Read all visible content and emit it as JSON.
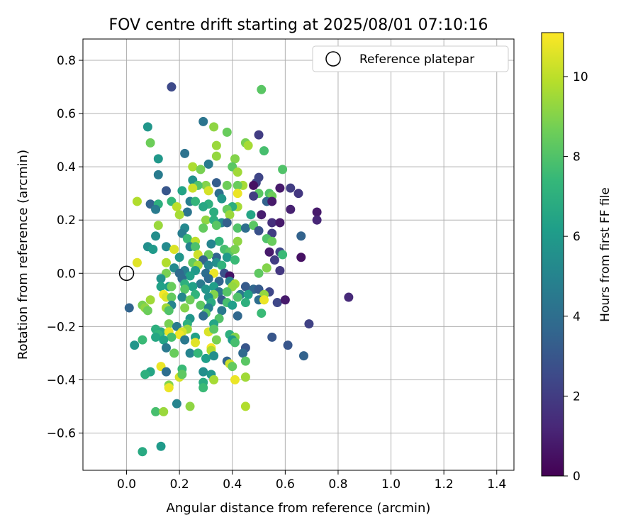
{
  "chart_data": {
    "type": "scatter",
    "title": "FOV centre drift starting at 2025/08/01 07:10:16",
    "xlabel": "Angular distance from reference (arcmin)",
    "ylabel": "Rotation from reference (arcmin)",
    "xlim": [
      -0.165,
      1.465
    ],
    "ylim": [
      -0.74,
      0.88
    ],
    "xticks": [
      0.0,
      0.2,
      0.4,
      0.6,
      0.8,
      1.0,
      1.2,
      1.4
    ],
    "xtick_labels": [
      "0.0",
      "0.2",
      "0.4",
      "0.6",
      "0.8",
      "1.0",
      "1.2",
      "1.4"
    ],
    "yticks": [
      -0.6,
      -0.4,
      -0.2,
      0.0,
      0.2,
      0.4,
      0.6,
      0.8
    ],
    "ytick_labels": [
      "−0.6",
      "−0.4",
      "−0.2",
      "0.0",
      "0.2",
      "0.4",
      "0.6",
      "0.8"
    ],
    "grid": true,
    "legend": {
      "position": "top-right",
      "entries": [
        "Reference platepar"
      ]
    },
    "reference_point": {
      "x": 0.0,
      "y": 0.0
    },
    "colorbar": {
      "label": "Hours from first FF file",
      "min": 0,
      "max": 11.1,
      "ticks": [
        0,
        2,
        4,
        6,
        8,
        10
      ],
      "tick_labels": [
        "0",
        "2",
        "4",
        "6",
        "8",
        "10"
      ],
      "colormap": "viridis",
      "colormap_stops": [
        "#440154",
        "#482878",
        "#3e4989",
        "#31688e",
        "#26828e",
        "#1f9e89",
        "#35b779",
        "#6ece58",
        "#b5de2b",
        "#fde725"
      ]
    },
    "points": [
      [
        0.17,
        0.7,
        2.5
      ],
      [
        0.51,
        0.69,
        8.2
      ],
      [
        0.29,
        0.57,
        4.3
      ],
      [
        0.08,
        0.55,
        5.8
      ],
      [
        0.33,
        0.55,
        9.2
      ],
      [
        0.38,
        0.53,
        8.5
      ],
      [
        0.5,
        0.52,
        2.0
      ],
      [
        0.09,
        0.49,
        8.6
      ],
      [
        0.45,
        0.49,
        8.8
      ],
      [
        0.46,
        0.48,
        9.6
      ],
      [
        0.34,
        0.48,
        9.4
      ],
      [
        0.52,
        0.46,
        7.8
      ],
      [
        0.22,
        0.45,
        4.2
      ],
      [
        0.34,
        0.44,
        9.3
      ],
      [
        0.12,
        0.43,
        5.9
      ],
      [
        0.41,
        0.43,
        9.0
      ],
      [
        0.31,
        0.41,
        4.6
      ],
      [
        0.4,
        0.4,
        8.2
      ],
      [
        0.25,
        0.4,
        9.7
      ],
      [
        0.28,
        0.39,
        8.8
      ],
      [
        0.59,
        0.39,
        8.0
      ],
      [
        0.42,
        0.38,
        9.5
      ],
      [
        0.12,
        0.37,
        4.6
      ],
      [
        0.5,
        0.36,
        2.3
      ],
      [
        0.25,
        0.35,
        5.6
      ],
      [
        0.34,
        0.34,
        3.3
      ],
      [
        0.49,
        0.34,
        2.3
      ],
      [
        0.48,
        0.33,
        0.5
      ],
      [
        0.44,
        0.33,
        9.6
      ],
      [
        0.38,
        0.33,
        8.6
      ],
      [
        0.42,
        0.33,
        8.5
      ],
      [
        0.3,
        0.33,
        9.0
      ],
      [
        0.27,
        0.33,
        8.0
      ],
      [
        0.25,
        0.32,
        10.2
      ],
      [
        0.15,
        0.31,
        3.0
      ],
      [
        0.21,
        0.31,
        6.4
      ],
      [
        0.58,
        0.32,
        0.8
      ],
      [
        0.54,
        0.3,
        8.0
      ],
      [
        0.65,
        0.3,
        1.8
      ],
      [
        0.62,
        0.32,
        2.0
      ],
      [
        0.35,
        0.3,
        4.0
      ],
      [
        0.31,
        0.31,
        10.4
      ],
      [
        0.5,
        0.3,
        8.2
      ],
      [
        0.42,
        0.3,
        10.8
      ],
      [
        0.48,
        0.29,
        2.0
      ],
      [
        0.55,
        0.29,
        8.6
      ],
      [
        0.36,
        0.28,
        5.8
      ],
      [
        0.53,
        0.27,
        3.5
      ],
      [
        0.55,
        0.27,
        0.8
      ],
      [
        0.04,
        0.27,
        9.8
      ],
      [
        0.17,
        0.27,
        7.4
      ],
      [
        0.09,
        0.26,
        3.5
      ],
      [
        0.12,
        0.26,
        7.0
      ],
      [
        0.24,
        0.27,
        4.8
      ],
      [
        0.26,
        0.27,
        7.3
      ],
      [
        0.31,
        0.26,
        7.0
      ],
      [
        0.29,
        0.25,
        6.6
      ],
      [
        0.19,
        0.25,
        10.0
      ],
      [
        0.11,
        0.24,
        4.6
      ],
      [
        0.62,
        0.24,
        1.0
      ],
      [
        0.42,
        0.25,
        9.6
      ],
      [
        0.4,
        0.25,
        6.9
      ],
      [
        0.51,
        0.22,
        0.9
      ],
      [
        0.38,
        0.24,
        8.4
      ],
      [
        0.47,
        0.22,
        6.5
      ],
      [
        0.33,
        0.23,
        6.9
      ],
      [
        0.39,
        0.22,
        9.4
      ],
      [
        0.23,
        0.23,
        4.3
      ],
      [
        0.2,
        0.22,
        9.6
      ],
      [
        0.72,
        0.23,
        0.8
      ],
      [
        0.72,
        0.2,
        1.2
      ],
      [
        0.3,
        0.2,
        9.2
      ],
      [
        0.33,
        0.2,
        7.0
      ],
      [
        0.36,
        0.19,
        5.3
      ],
      [
        0.38,
        0.19,
        3.4
      ],
      [
        0.34,
        0.18,
        8.2
      ],
      [
        0.55,
        0.19,
        1.5
      ],
      [
        0.58,
        0.19,
        0.8
      ],
      [
        0.12,
        0.18,
        9.4
      ],
      [
        0.22,
        0.17,
        5.2
      ],
      [
        0.29,
        0.17,
        8.4
      ],
      [
        0.42,
        0.17,
        8.0
      ],
      [
        0.45,
        0.17,
        4.0
      ],
      [
        0.48,
        0.18,
        8.2
      ],
      [
        0.5,
        0.16,
        2.8
      ],
      [
        0.55,
        0.15,
        2.0
      ],
      [
        0.53,
        0.13,
        8.0
      ],
      [
        0.55,
        0.12,
        8.5
      ],
      [
        0.21,
        0.15,
        4.7
      ],
      [
        0.66,
        0.14,
        3.5
      ],
      [
        0.23,
        0.13,
        7.5
      ],
      [
        0.11,
        0.14,
        5.4
      ],
      [
        0.26,
        0.12,
        10.0
      ],
      [
        0.35,
        0.12,
        7.3
      ],
      [
        0.32,
        0.11,
        5.0
      ],
      [
        0.42,
        0.12,
        9.2
      ],
      [
        0.37,
        0.09,
        7.8
      ],
      [
        0.24,
        0.1,
        4.9
      ],
      [
        0.26,
        0.1,
        7.9
      ],
      [
        0.08,
        0.1,
        5.5
      ],
      [
        0.15,
        0.1,
        5.3
      ],
      [
        0.1,
        0.09,
        6.0
      ],
      [
        0.18,
        0.09,
        10.5
      ],
      [
        0.54,
        0.08,
        0.8
      ],
      [
        0.58,
        0.08,
        2.3
      ],
      [
        0.39,
        0.08,
        8.2
      ],
      [
        0.41,
        0.09,
        8.8
      ],
      [
        0.34,
        0.06,
        3.6
      ],
      [
        0.27,
        0.07,
        10.3
      ],
      [
        0.31,
        0.07,
        8.5
      ],
      [
        0.59,
        0.07,
        7.5
      ],
      [
        0.2,
        0.06,
        5.8
      ],
      [
        0.38,
        0.06,
        6.0
      ],
      [
        0.56,
        0.05,
        2.0
      ],
      [
        0.29,
        0.05,
        3.5
      ],
      [
        0.41,
        0.05,
        7.5
      ],
      [
        0.66,
        0.06,
        0.5
      ],
      [
        0.25,
        0.04,
        8.4
      ],
      [
        0.34,
        0.04,
        5.5
      ],
      [
        0.36,
        0.03,
        7.2
      ],
      [
        0.04,
        0.04,
        10.6
      ],
      [
        0.15,
        0.04,
        9.8
      ],
      [
        0.27,
        0.03,
        9.5
      ],
      [
        0.31,
        0.03,
        5.0
      ],
      [
        0.53,
        0.02,
        9.0
      ],
      [
        0.22,
        0.01,
        4.8
      ],
      [
        0.18,
        0.02,
        5.3
      ],
      [
        0.2,
        0.0,
        3.8
      ],
      [
        0.26,
        0.01,
        6.0
      ],
      [
        0.3,
        0.0,
        4.0
      ],
      [
        0.33,
        0.0,
        10.8
      ],
      [
        0.37,
        0.0,
        2.8
      ],
      [
        0.39,
        -0.01,
        0.6
      ],
      [
        0.15,
        0.0,
        8.8
      ],
      [
        0.24,
        -0.01,
        6.3
      ],
      [
        0.31,
        -0.02,
        3.8
      ],
      [
        0.5,
        0.0,
        8.3
      ],
      [
        0.58,
        0.01,
        1.8
      ],
      [
        0.13,
        -0.02,
        5.7
      ],
      [
        0.21,
        -0.02,
        3.9
      ],
      [
        0.35,
        -0.03,
        3.6
      ],
      [
        0.39,
        -0.03,
        5.0
      ],
      [
        0.22,
        -0.04,
        7.0
      ],
      [
        0.28,
        -0.04,
        4.5
      ],
      [
        0.41,
        -0.04,
        9.6
      ],
      [
        0.16,
        -0.05,
        6.1
      ],
      [
        0.25,
        -0.05,
        6.3
      ],
      [
        0.33,
        -0.05,
        6.2
      ],
      [
        0.45,
        -0.05,
        3.2
      ],
      [
        0.13,
        -0.05,
        6.3
      ],
      [
        0.17,
        -0.05,
        8.5
      ],
      [
        0.4,
        -0.05,
        9.3
      ],
      [
        0.22,
        -0.06,
        8.1
      ],
      [
        0.3,
        -0.06,
        5.8
      ],
      [
        0.35,
        -0.07,
        4.3
      ],
      [
        0.38,
        -0.07,
        8.1
      ],
      [
        0.48,
        -0.06,
        3.7
      ],
      [
        0.5,
        -0.06,
        3.2
      ],
      [
        0.54,
        -0.07,
        2.4
      ],
      [
        0.14,
        -0.08,
        10.9
      ],
      [
        0.26,
        -0.08,
        7.2
      ],
      [
        0.33,
        -0.08,
        9.0
      ],
      [
        0.43,
        -0.08,
        4.5
      ],
      [
        0.46,
        -0.08,
        6.4
      ],
      [
        0.52,
        -0.08,
        9.3
      ],
      [
        0.15,
        -0.09,
        10.5
      ],
      [
        0.17,
        -0.09,
        8.4
      ],
      [
        0.21,
        -0.09,
        5.1
      ],
      [
        0.31,
        -0.09,
        5.7
      ],
      [
        0.36,
        -0.1,
        3.2
      ],
      [
        0.42,
        -0.09,
        8.0
      ],
      [
        0.84,
        -0.09,
        1.3
      ],
      [
        0.09,
        -0.1,
        9.5
      ],
      [
        0.24,
        -0.1,
        8.6
      ],
      [
        0.5,
        -0.1,
        4.0
      ],
      [
        0.52,
        -0.1,
        10.8
      ],
      [
        0.57,
        -0.11,
        2.4
      ],
      [
        0.6,
        -0.1,
        0.8
      ],
      [
        0.32,
        -0.11,
        6.8
      ],
      [
        0.38,
        -0.11,
        7.8
      ],
      [
        0.45,
        -0.11,
        7.0
      ],
      [
        0.06,
        -0.12,
        8.8
      ],
      [
        0.17,
        -0.12,
        5.0
      ],
      [
        0.28,
        -0.12,
        8.3
      ],
      [
        0.4,
        -0.12,
        6.2
      ],
      [
        0.01,
        -0.13,
        3.6
      ],
      [
        0.07,
        -0.13,
        9.2
      ],
      [
        0.15,
        -0.13,
        9.5
      ],
      [
        0.22,
        -0.13,
        9.0
      ],
      [
        0.31,
        -0.13,
        4.9
      ],
      [
        0.36,
        -0.14,
        4.5
      ],
      [
        0.08,
        -0.14,
        8.6
      ],
      [
        0.16,
        -0.14,
        8.0
      ],
      [
        0.3,
        -0.15,
        8.2
      ],
      [
        0.51,
        -0.15,
        7.5
      ],
      [
        0.29,
        -0.16,
        4.0
      ],
      [
        0.42,
        -0.16,
        3.7
      ],
      [
        0.24,
        -0.17,
        5.8
      ],
      [
        0.35,
        -0.17,
        8.0
      ],
      [
        0.16,
        -0.19,
        8.8
      ],
      [
        0.23,
        -0.19,
        7.0
      ],
      [
        0.33,
        -0.19,
        6.5
      ],
      [
        0.69,
        -0.19,
        2.2
      ],
      [
        0.19,
        -0.2,
        4.6
      ],
      [
        0.11,
        -0.21,
        7.0
      ],
      [
        0.23,
        -0.21,
        9.4
      ],
      [
        0.31,
        -0.22,
        10.5
      ],
      [
        0.33,
        -0.21,
        8.2
      ],
      [
        0.13,
        -0.22,
        6.8
      ],
      [
        0.16,
        -0.22,
        10.8
      ],
      [
        0.21,
        -0.22,
        10.4
      ],
      [
        0.12,
        -0.23,
        7.4
      ],
      [
        0.2,
        -0.23,
        10.9
      ],
      [
        0.39,
        -0.23,
        7.0
      ],
      [
        0.41,
        -0.24,
        9.0
      ],
      [
        0.55,
        -0.24,
        3.0
      ],
      [
        0.11,
        -0.24,
        6.6
      ],
      [
        0.17,
        -0.24,
        7.8
      ],
      [
        0.26,
        -0.24,
        6.3
      ],
      [
        0.4,
        -0.25,
        6.0
      ],
      [
        0.06,
        -0.25,
        7.5
      ],
      [
        0.14,
        -0.25,
        6.4
      ],
      [
        0.22,
        -0.25,
        4.5
      ],
      [
        0.34,
        -0.25,
        8.8
      ],
      [
        0.03,
        -0.27,
        5.8
      ],
      [
        0.26,
        -0.26,
        10.6
      ],
      [
        0.41,
        -0.26,
        7.8
      ],
      [
        0.61,
        -0.27,
        3.0
      ],
      [
        0.15,
        -0.28,
        4.5
      ],
      [
        0.32,
        -0.28,
        11.0
      ],
      [
        0.45,
        -0.28,
        3.0
      ],
      [
        0.32,
        -0.29,
        9.8
      ],
      [
        0.18,
        -0.3,
        8.5
      ],
      [
        0.44,
        -0.3,
        3.8
      ],
      [
        0.24,
        -0.3,
        5.0
      ],
      [
        0.27,
        -0.3,
        7.4
      ],
      [
        0.67,
        -0.31,
        3.5
      ],
      [
        0.33,
        -0.31,
        5.5
      ],
      [
        0.3,
        -0.32,
        6.2
      ],
      [
        0.38,
        -0.33,
        3.6
      ],
      [
        0.45,
        -0.33,
        8.2
      ],
      [
        0.39,
        -0.34,
        10.3
      ],
      [
        0.13,
        -0.35,
        10.8
      ],
      [
        0.21,
        -0.36,
        7.5
      ],
      [
        0.4,
        -0.35,
        8.4
      ],
      [
        0.09,
        -0.37,
        6.5
      ],
      [
        0.15,
        -0.37,
        4.0
      ],
      [
        0.07,
        -0.38,
        7.0
      ],
      [
        0.29,
        -0.37,
        5.5
      ],
      [
        0.32,
        -0.38,
        5.9
      ],
      [
        0.2,
        -0.39,
        10.4
      ],
      [
        0.21,
        -0.38,
        8.3
      ],
      [
        0.45,
        -0.39,
        9.5
      ],
      [
        0.33,
        -0.4,
        9.6
      ],
      [
        0.41,
        -0.4,
        10.8
      ],
      [
        0.29,
        -0.41,
        6.8
      ],
      [
        0.16,
        -0.42,
        9.0
      ],
      [
        0.29,
        -0.43,
        7.5
      ],
      [
        0.16,
        -0.43,
        10.8
      ],
      [
        0.19,
        -0.49,
        5.0
      ],
      [
        0.45,
        -0.5,
        9.8
      ],
      [
        0.24,
        -0.5,
        9.2
      ],
      [
        0.11,
        -0.52,
        7.8
      ],
      [
        0.14,
        -0.52,
        9.4
      ],
      [
        0.13,
        -0.65,
        6.0
      ],
      [
        0.06,
        -0.67,
        6.7
      ]
    ]
  }
}
